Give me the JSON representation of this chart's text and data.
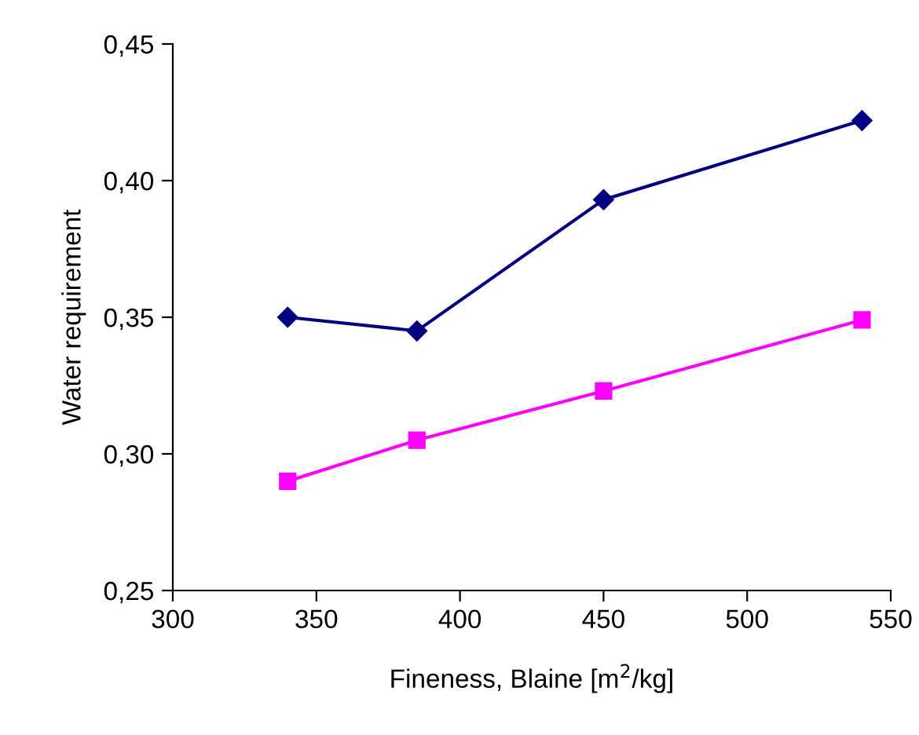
{
  "chart_data": {
    "type": "line",
    "xlabel": "Fineness, Blaine [m$^{2}$/kg]",
    "ylabel": "Water requirement",
    "x": [
      340,
      385,
      450,
      540
    ],
    "series": [
      {
        "color": "#000080",
        "values": [
          0.35,
          0.345,
          0.393,
          0.422
        ],
        "marker": "diamond"
      },
      {
        "color": "#ff00ff",
        "values": [
          0.29,
          0.305,
          0.323,
          0.349
        ],
        "marker": "square"
      }
    ],
    "xlim": [
      300,
      550
    ],
    "xticks": [
      300,
      350,
      400,
      450,
      500,
      550
    ],
    "ylim": [
      0.25,
      0.45
    ],
    "yticks": [
      {
        "value": 0.25,
        "label": "0,25"
      },
      {
        "value": 0.3,
        "label": "0,30"
      },
      {
        "value": 0.35,
        "label": "0,35"
      },
      {
        "value": 0.4,
        "label": "0,40"
      },
      {
        "value": 0.45,
        "label": "0,45"
      }
    ],
    "grid": false,
    "legend": false,
    "line_style": "solid"
  }
}
